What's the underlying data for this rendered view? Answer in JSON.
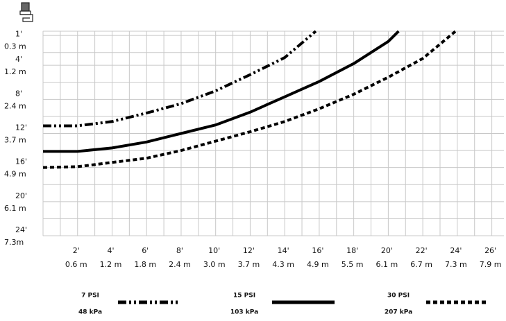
{
  "chart_data": {
    "type": "line",
    "xlim": [
      0,
      26.7
    ],
    "ylim": [
      0,
      24
    ],
    "y_reversed": true,
    "grid": true,
    "xticks": [
      {
        "value": 2,
        "label": "2'"
      },
      {
        "value": 4,
        "label": "4'"
      },
      {
        "value": 6,
        "label": "6'"
      },
      {
        "value": 8,
        "label": "8'"
      },
      {
        "value": 10,
        "label": "10'"
      },
      {
        "value": 12,
        "label": "12'"
      },
      {
        "value": 14,
        "label": "14'"
      },
      {
        "value": 16,
        "label": "16'"
      },
      {
        "value": 18,
        "label": "18'"
      },
      {
        "value": 20,
        "label": "20'"
      },
      {
        "value": 22,
        "label": "22'"
      },
      {
        "value": 24,
        "label": "24'"
      },
      {
        "value": 26,
        "label": "26'"
      }
    ],
    "xtick_metric_labels": [
      "0.6 m",
      "1.2 m",
      "1.8 m",
      "2.4 m",
      "3.0 m",
      "3.7 m",
      "4.3 m",
      "4.9 m",
      "5.5 m",
      "6.1 m",
      "6.7 m",
      "7.3 m",
      "7.9 m"
    ],
    "yticks": [
      {
        "value": 1,
        "label": "1'"
      },
      {
        "value": 4,
        "label": "4'"
      },
      {
        "value": 8,
        "label": "8'"
      },
      {
        "value": 12,
        "label": "12'"
      },
      {
        "value": 16,
        "label": "16'"
      },
      {
        "value": 20,
        "label": "20'"
      },
      {
        "value": 24,
        "label": "24'"
      }
    ],
    "ytick_metric_labels": [
      "0.3 m",
      "1.2 m",
      "2.4 m",
      "3.7 m",
      "4.9 m",
      "6.1 m",
      "7.3m"
    ],
    "series": [
      {
        "name": "7 PSI",
        "name_metric": "48 kPa",
        "color": "#000000",
        "line_style": "dash-dot-dot",
        "x": [
          0,
          2,
          4,
          6,
          8,
          10,
          12,
          14,
          15.8
        ],
        "values": [
          11.1,
          11.1,
          10.6,
          9.6,
          8.5,
          7.0,
          5.1,
          3.1,
          0
        ]
      },
      {
        "name": "15 PSI",
        "name_metric": "103 kPa",
        "color": "#000000",
        "line_style": "solid",
        "x": [
          0,
          2,
          4,
          6,
          8,
          10,
          12,
          14,
          16,
          18,
          20,
          20.6
        ],
        "values": [
          14.1,
          14.1,
          13.7,
          13.0,
          12.0,
          11.0,
          9.5,
          7.7,
          5.9,
          3.8,
          1.2,
          0
        ]
      },
      {
        "name": "30 PSI",
        "name_metric": "207 kPa",
        "color": "#000000",
        "line_style": "dashed",
        "x": [
          0,
          2,
          4,
          6,
          8,
          10,
          12,
          14,
          16,
          18,
          20,
          22,
          23.9
        ],
        "values": [
          16.0,
          15.9,
          15.4,
          14.9,
          14.0,
          12.9,
          11.8,
          10.6,
          9.1,
          7.4,
          5.4,
          3.2,
          0
        ]
      }
    ]
  }
}
